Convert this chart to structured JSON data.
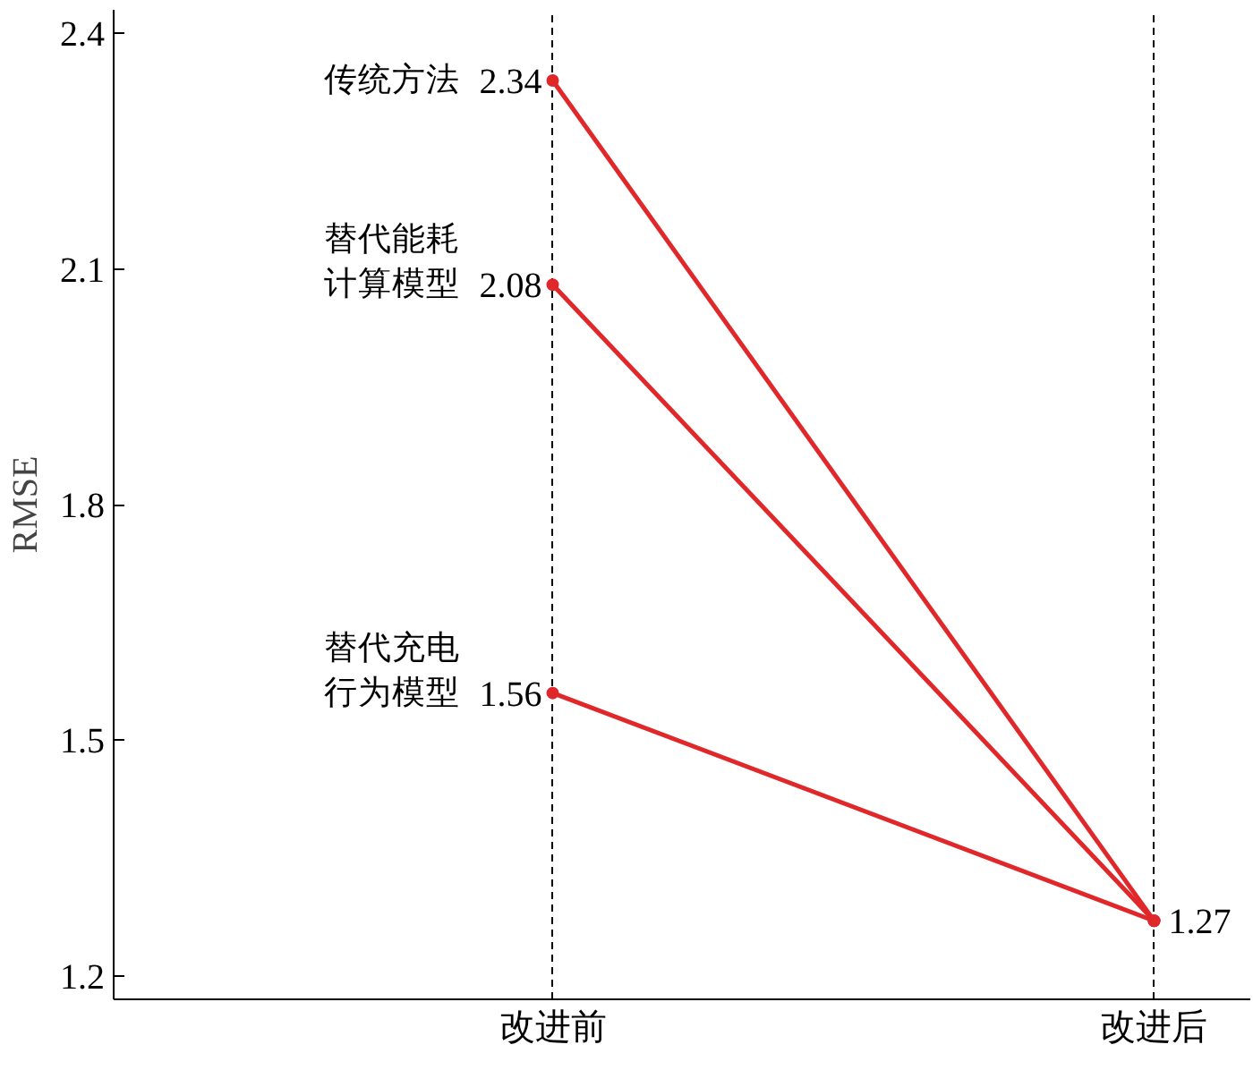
{
  "chart_data": {
    "type": "line",
    "ylabel": "RMSE",
    "categories": [
      "改进前",
      "改进后"
    ],
    "ylim": [
      1.17,
      2.43
    ],
    "yticks": [
      1.2,
      1.5,
      1.8,
      2.1,
      2.4
    ],
    "grid": "x",
    "legend": false,
    "marker": "circle",
    "line_style": "solid",
    "series": [
      {
        "name": "传统方法",
        "color": "#e0282b",
        "values": [
          2.34,
          1.27
        ],
        "value_labels": [
          "2.34",
          "1.27"
        ]
      },
      {
        "name": "替代能耗计算模型",
        "color": "#e0282b",
        "values": [
          2.08,
          1.27
        ],
        "value_labels": [
          "2.08",
          null
        ]
      },
      {
        "name": "替代充电行为模型",
        "color": "#e0282b",
        "values": [
          1.56,
          1.27
        ],
        "value_labels": [
          "1.56",
          null
        ]
      }
    ]
  }
}
